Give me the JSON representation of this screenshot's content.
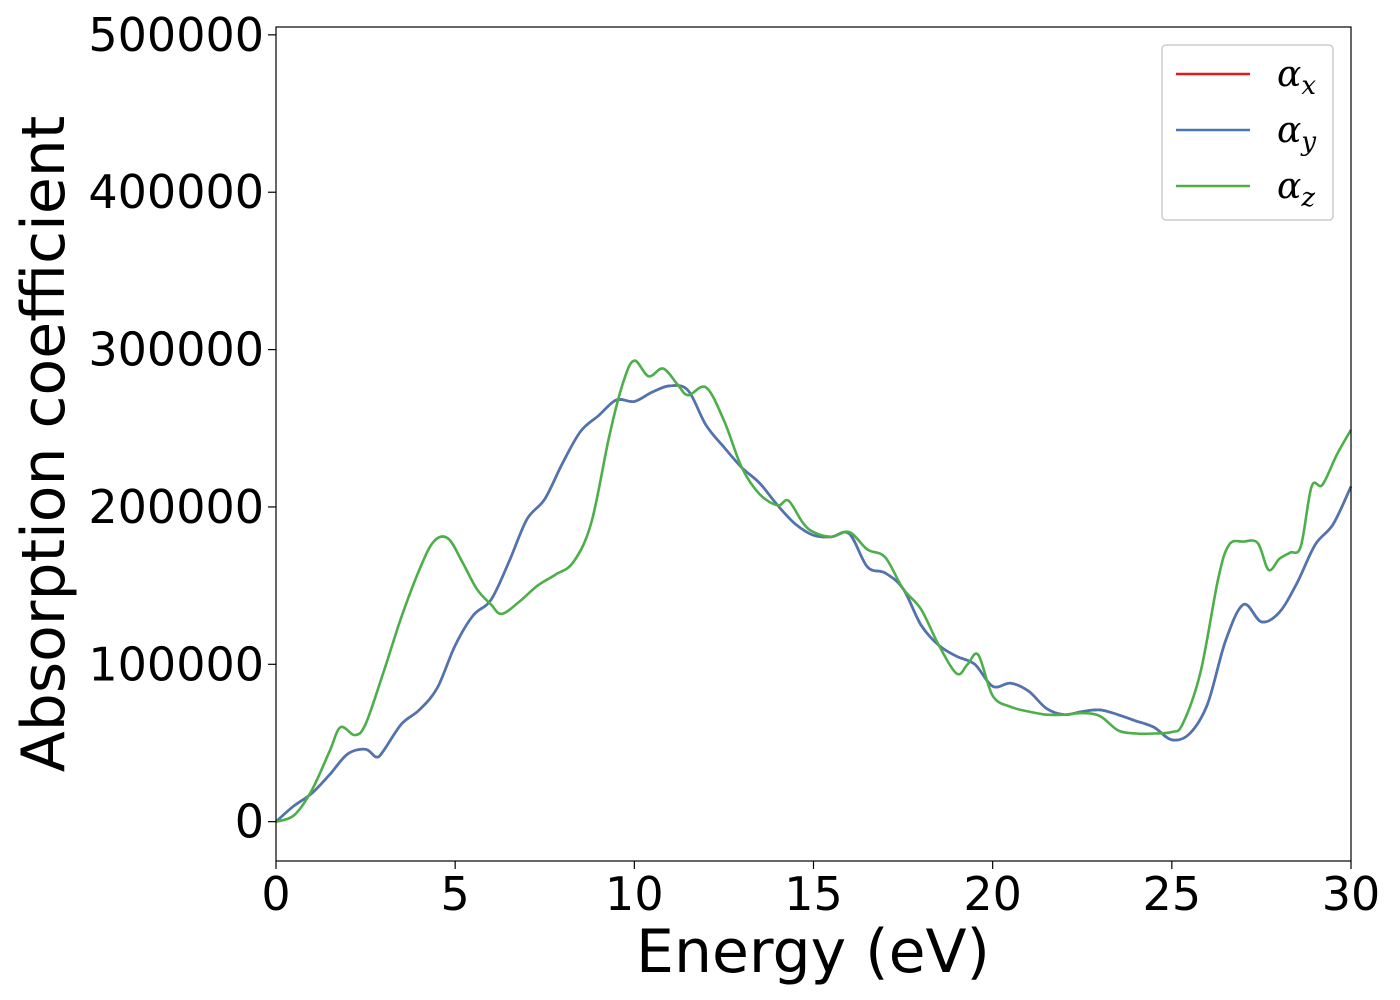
{
  "chart_data": {
    "type": "line",
    "title": "",
    "xlabel": "Energy (eV)",
    "ylabel": "Absorption coefficient",
    "xlim": [
      0,
      30
    ],
    "ylim": [
      -25000,
      505000
    ],
    "x_ticks": [
      0,
      5,
      10,
      15,
      20,
      25,
      30
    ],
    "x_tick_labels": [
      "0",
      "5",
      "10",
      "15",
      "20",
      "25",
      "30"
    ],
    "y_ticks": [
      0,
      100000,
      200000,
      300000,
      400000,
      500000
    ],
    "y_tick_labels": [
      "0",
      "100000",
      "200000",
      "300000",
      "400000",
      "500000"
    ],
    "grid": false,
    "legend": {
      "position": "top-right",
      "entries": [
        {
          "base": "α",
          "sub": "x",
          "color": "#e41a1c"
        },
        {
          "base": "α",
          "sub": "y",
          "color": "#4a77b4"
        },
        {
          "base": "α",
          "sub": "z",
          "color": "#4daf4a"
        }
      ]
    },
    "series": [
      {
        "name": "αx",
        "color": "#e41a1c",
        "x": [
          0,
          0.5,
          1.0,
          1.5,
          2.0,
          2.5,
          2.8,
          3.0,
          3.5,
          4.0,
          4.5,
          5.0,
          5.5,
          6.0,
          6.5,
          7.0,
          7.5,
          8.0,
          8.5,
          9.0,
          9.5,
          10.0,
          10.5,
          11.0,
          11.5,
          12.0,
          12.5,
          13.0,
          13.5,
          14.0,
          14.5,
          15.0,
          15.5,
          16.0,
          16.5,
          17.0,
          17.5,
          18.0,
          18.5,
          19.0,
          19.5,
          20.0,
          20.5,
          21.0,
          21.5,
          22.0,
          22.5,
          23.0,
          23.5,
          24.0,
          24.5,
          25.0,
          25.5,
          26.0,
          26.5,
          27.0,
          27.5,
          28.0,
          28.5,
          29.0,
          29.5,
          30.0
        ],
        "y": [
          0,
          10000,
          18000,
          30000,
          43000,
          46000,
          41000,
          45000,
          62000,
          71000,
          85000,
          112000,
          131000,
          141000,
          165000,
          192000,
          205000,
          228000,
          248000,
          258000,
          268000,
          267000,
          273000,
          277000,
          274000,
          252000,
          238000,
          225000,
          215000,
          201000,
          189000,
          182000,
          181000,
          183000,
          162000,
          158000,
          148000,
          125000,
          112000,
          105000,
          100000,
          86000,
          88000,
          83000,
          72000,
          68000,
          70000,
          71000,
          68000,
          64000,
          60000,
          52000,
          56000,
          75000,
          115000,
          138000,
          127000,
          133000,
          152000,
          176000,
          189000,
          213000
        ]
      },
      {
        "name": "αy",
        "color": "#4a77b4",
        "x": [
          0,
          0.5,
          1.0,
          1.5,
          2.0,
          2.5,
          2.8,
          3.0,
          3.5,
          4.0,
          4.5,
          5.0,
          5.5,
          6.0,
          6.5,
          7.0,
          7.5,
          8.0,
          8.5,
          9.0,
          9.5,
          10.0,
          10.5,
          11.0,
          11.5,
          12.0,
          12.5,
          13.0,
          13.5,
          14.0,
          14.5,
          15.0,
          15.5,
          16.0,
          16.5,
          17.0,
          17.5,
          18.0,
          18.5,
          19.0,
          19.5,
          20.0,
          20.5,
          21.0,
          21.5,
          22.0,
          22.5,
          23.0,
          23.5,
          24.0,
          24.5,
          25.0,
          25.5,
          26.0,
          26.5,
          27.0,
          27.5,
          28.0,
          28.5,
          29.0,
          29.5,
          30.0
        ],
        "y": [
          0,
          10000,
          18000,
          30000,
          43000,
          46000,
          41000,
          45000,
          62000,
          71000,
          85000,
          112000,
          131000,
          141000,
          165000,
          192000,
          205000,
          228000,
          248000,
          258000,
          268000,
          267000,
          273000,
          277000,
          274000,
          252000,
          238000,
          225000,
          215000,
          201000,
          189000,
          182000,
          181000,
          183000,
          162000,
          158000,
          148000,
          125000,
          112000,
          105000,
          100000,
          86000,
          88000,
          83000,
          72000,
          68000,
          70000,
          71000,
          68000,
          64000,
          60000,
          52000,
          56000,
          75000,
          115000,
          138000,
          127000,
          133000,
          152000,
          176000,
          189000,
          213000
        ]
      },
      {
        "name": "αz",
        "color": "#4daf4a",
        "x": [
          0,
          0.5,
          1.0,
          1.5,
          1.8,
          2.2,
          2.5,
          3.0,
          3.5,
          4.0,
          4.4,
          4.8,
          5.2,
          5.6,
          6.0,
          6.3,
          6.8,
          7.3,
          7.8,
          8.3,
          8.8,
          9.3,
          9.7,
          10.0,
          10.4,
          10.8,
          11.2,
          11.5,
          12.0,
          12.5,
          13.0,
          13.5,
          14.0,
          14.3,
          14.7,
          15.0,
          15.5,
          16.0,
          16.5,
          17.0,
          17.5,
          18.0,
          18.5,
          19.0,
          19.3,
          19.6,
          20.0,
          20.5,
          21.0,
          21.5,
          22.0,
          22.5,
          23.0,
          23.5,
          24.0,
          24.5,
          25.0,
          25.3,
          25.8,
          26.3,
          26.6,
          27.0,
          27.4,
          27.7,
          28.0,
          28.3,
          28.6,
          28.9,
          29.2,
          29.6,
          30.0
        ],
        "y": [
          0,
          4000,
          20000,
          45000,
          60000,
          55000,
          62000,
          95000,
          130000,
          160000,
          178000,
          180000,
          165000,
          148000,
          138000,
          132000,
          140000,
          150000,
          157000,
          165000,
          190000,
          245000,
          280000,
          293000,
          283000,
          288000,
          278000,
          271000,
          276000,
          255000,
          225000,
          208000,
          201000,
          204000,
          190000,
          184000,
          181000,
          184000,
          173000,
          168000,
          148000,
          135000,
          112000,
          94000,
          100000,
          106000,
          80000,
          73000,
          70000,
          68000,
          68000,
          69000,
          67000,
          58000,
          56000,
          56000,
          57000,
          62000,
          95000,
          155000,
          176000,
          178000,
          177000,
          160000,
          167000,
          171000,
          175000,
          213000,
          214000,
          233000,
          249000
        ]
      }
    ]
  }
}
